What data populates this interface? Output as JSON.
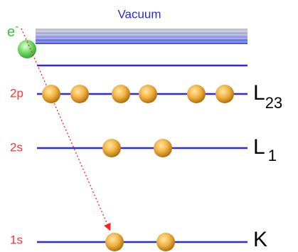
{
  "vacuum_label": "Vacuum",
  "electron": {
    "label": "e",
    "charge": "-"
  },
  "levels": [
    {
      "name": "2p",
      "shell": "L",
      "subscript": "23"
    },
    {
      "name": "2s",
      "shell": "L",
      "subscript": "1"
    },
    {
      "name": "1s",
      "shell": "K"
    }
  ]
}
